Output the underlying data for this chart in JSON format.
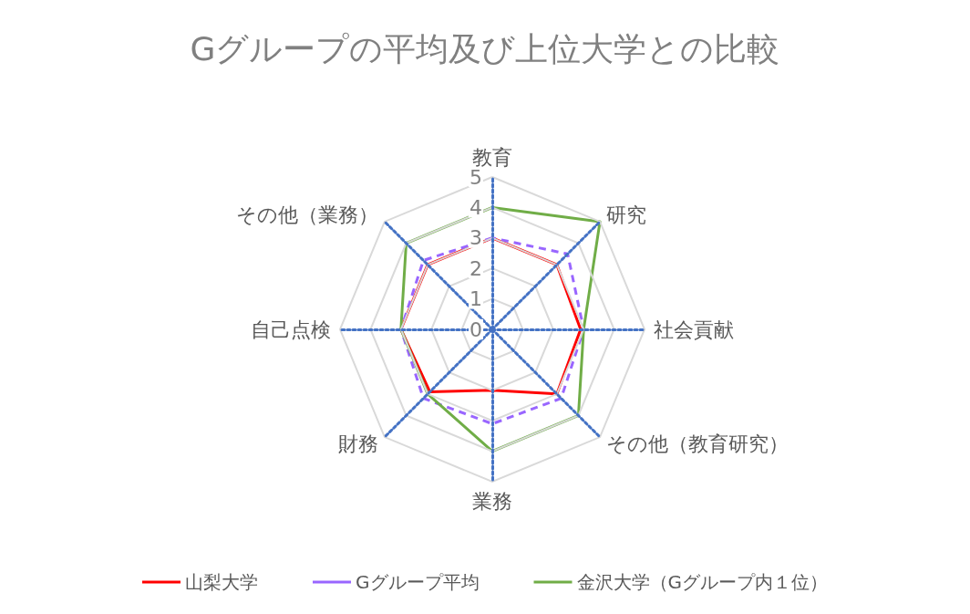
{
  "chart_data": {
    "type": "radar",
    "title": "Gグループの平均及び上位大学との比較",
    "categories": [
      "教育",
      "研究",
      "社会貢献",
      "その他（教育研究）",
      "業務",
      "財務",
      "自己点検",
      "その他（業務）"
    ],
    "ylim": [
      0,
      5
    ],
    "yticks": [
      0,
      1,
      2,
      3,
      4,
      5
    ],
    "grid": true,
    "legend": "bottom",
    "marker": "none",
    "series": [
      {
        "name": "山梨大学",
        "color": "#ff0000",
        "line_style": "solid",
        "values": [
          3.0,
          3.0,
          2.9,
          3.0,
          2.0,
          2.9,
          3.0,
          3.0
        ]
      },
      {
        "name": "Gグループ平均",
        "color": "#9966ff",
        "line_style": "dashed",
        "values": [
          3.0,
          3.5,
          3.0,
          3.2,
          3.1,
          3.2,
          3.0,
          3.2
        ]
      },
      {
        "name": "金沢大学（Gグループ内１位）",
        "color": "#70ad47",
        "line_style": "solid",
        "values": [
          4.0,
          5.0,
          3.0,
          4.0,
          4.0,
          3.0,
          3.0,
          4.0
        ]
      }
    ]
  }
}
